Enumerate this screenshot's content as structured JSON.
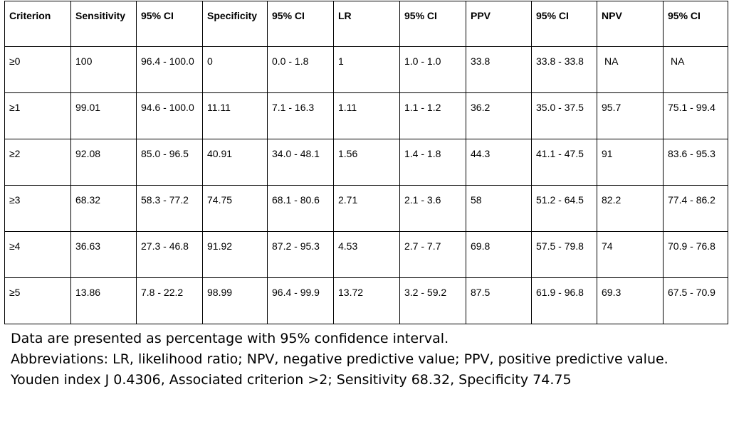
{
  "table": {
    "headers": [
      "Criterion",
      "Sensitivity",
      "95% CI",
      "Specificity",
      "95% CI",
      "LR",
      "95% CI",
      "PPV",
      "95% CI",
      "NPV",
      "95% CI"
    ],
    "rows": [
      [
        "≥0",
        "100",
        "96.4 - 100.0",
        "0",
        "0.0 - 1.8",
        "1",
        "1.0 - 1.0",
        "33.8",
        "33.8 - 33.8",
        "NA",
        "NA"
      ],
      [
        "≥1",
        "99.01",
        "94.6 - 100.0",
        "11.11",
        "7.1 - 16.3",
        "1.11",
        "1.1 - 1.2",
        "36.2",
        "35.0 - 37.5",
        "95.7",
        "75.1 - 99.4"
      ],
      [
        "≥2",
        "92.08",
        "85.0 - 96.5",
        "40.91",
        "34.0 - 48.1",
        "1.56",
        "1.4 - 1.8",
        "44.3",
        "41.1 - 47.5",
        "91",
        "83.6 - 95.3"
      ],
      [
        "≥3",
        "68.32",
        "58.3 - 77.2",
        "74.75",
        "68.1 - 80.6",
        "2.71",
        "2.1 - 3.6",
        "58",
        "51.2 - 64.5",
        "82.2",
        "77.4 - 86.2"
      ],
      [
        "≥4",
        "36.63",
        "27.3 - 46.8",
        "91.92",
        "87.2 - 95.3",
        "4.53",
        "2.7 - 7.7",
        "69.8",
        "57.5 - 79.8",
        "74",
        "70.9 - 76.8"
      ],
      [
        "≥5",
        "13.86",
        "7.8 - 22.2",
        "98.99",
        "96.4 - 99.9",
        "13.72",
        "3.2 - 59.2",
        "87.5",
        "61.9 - 96.8",
        "69.3",
        "67.5 - 70.9"
      ]
    ]
  },
  "notes": [
    "Data are presented as percentage with 95% confidence interval.",
    "Abbreviations: LR, likelihood ratio; NPV, negative predictive value; PPV, positive predictive value.",
    "Youden index J 0.4306, Associated criterion >2; Sensitivity 68.32, Specificity 74.75"
  ]
}
